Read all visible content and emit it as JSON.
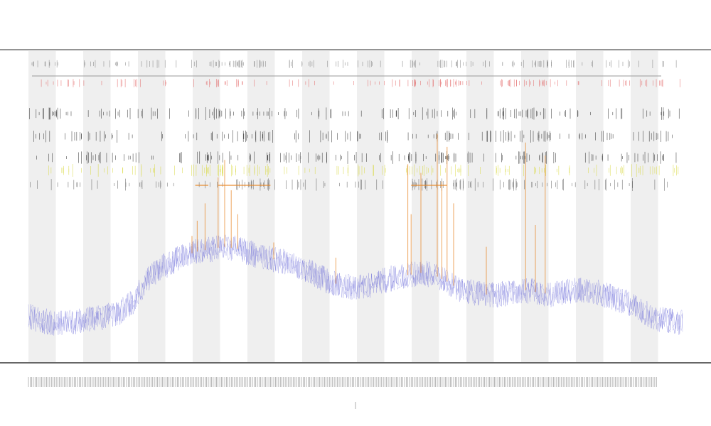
{
  "chart_data": {
    "type": "line",
    "title": "",
    "subtitle_lines": [],
    "xlabel": "",
    "ylabel": "",
    "x_range": [
      0,
      1
    ],
    "y_range": [
      0,
      1
    ],
    "grid": false,
    "legend": {
      "position": "top-left",
      "entries": []
    },
    "shaded_bands": true,
    "track_rows": [
      {
        "name": "",
        "color": "#7a7a7a"
      },
      {
        "name": "",
        "color": "#e26060"
      },
      {
        "name": "",
        "color": "#222222"
      },
      {
        "name": "",
        "color": "#222222"
      },
      {
        "name": "",
        "color": "#222222"
      },
      {
        "name": "",
        "color": "#d8d83a"
      },
      {
        "name": "",
        "color": "#555555"
      }
    ],
    "series": [
      {
        "name": "",
        "color": "#5b5bd6",
        "points": [
          [
            0.0,
            0.08
          ],
          [
            0.02,
            0.06
          ],
          [
            0.04,
            0.05
          ],
          [
            0.06,
            0.055
          ],
          [
            0.08,
            0.06
          ],
          [
            0.1,
            0.07
          ],
          [
            0.12,
            0.08
          ],
          [
            0.14,
            0.1
          ],
          [
            0.16,
            0.15
          ],
          [
            0.18,
            0.24
          ],
          [
            0.2,
            0.3
          ],
          [
            0.22,
            0.33
          ],
          [
            0.24,
            0.36
          ],
          [
            0.26,
            0.38
          ],
          [
            0.28,
            0.39
          ],
          [
            0.3,
            0.4
          ],
          [
            0.32,
            0.39
          ],
          [
            0.34,
            0.37
          ],
          [
            0.36,
            0.35
          ],
          [
            0.38,
            0.34
          ],
          [
            0.4,
            0.32
          ],
          [
            0.42,
            0.3
          ],
          [
            0.44,
            0.27
          ],
          [
            0.46,
            0.24
          ],
          [
            0.48,
            0.22
          ],
          [
            0.5,
            0.21
          ],
          [
            0.52,
            0.22
          ],
          [
            0.54,
            0.24
          ],
          [
            0.56,
            0.26
          ],
          [
            0.58,
            0.27
          ],
          [
            0.6,
            0.28
          ],
          [
            0.62,
            0.27
          ],
          [
            0.64,
            0.24
          ],
          [
            0.66,
            0.2
          ],
          [
            0.68,
            0.19
          ],
          [
            0.7,
            0.18
          ],
          [
            0.72,
            0.18
          ],
          [
            0.74,
            0.19
          ],
          [
            0.76,
            0.2
          ],
          [
            0.78,
            0.19
          ],
          [
            0.8,
            0.18
          ],
          [
            0.82,
            0.19
          ],
          [
            0.84,
            0.2
          ],
          [
            0.86,
            0.2
          ],
          [
            0.88,
            0.18
          ],
          [
            0.9,
            0.16
          ],
          [
            0.92,
            0.14
          ],
          [
            0.94,
            0.1
          ],
          [
            0.96,
            0.07
          ],
          [
            0.98,
            0.06
          ],
          [
            1.0,
            0.05
          ]
        ]
      },
      {
        "name": "",
        "color": "#e8892a",
        "spikes": [
          [
            0.25,
            0.45
          ],
          [
            0.258,
            0.52
          ],
          [
            0.27,
            0.6
          ],
          [
            0.29,
            0.72
          ],
          [
            0.3,
            0.8
          ],
          [
            0.31,
            0.66
          ],
          [
            0.32,
            0.55
          ],
          [
            0.375,
            0.42
          ],
          [
            0.47,
            0.35
          ],
          [
            0.58,
            0.78
          ],
          [
            0.585,
            0.55
          ],
          [
            0.6,
            0.74
          ],
          [
            0.625,
            0.92
          ],
          [
            0.632,
            0.7
          ],
          [
            0.64,
            0.86
          ],
          [
            0.65,
            0.6
          ],
          [
            0.7,
            0.4
          ],
          [
            0.76,
            0.88
          ],
          [
            0.775,
            0.5
          ],
          [
            0.79,
            0.82
          ]
        ]
      }
    ]
  }
}
